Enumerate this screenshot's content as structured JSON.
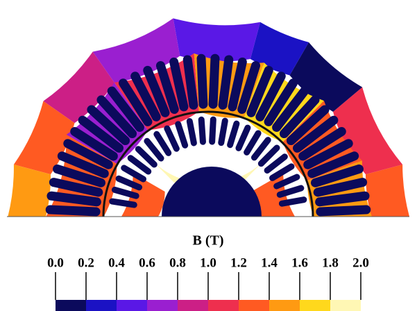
{
  "colorbar": {
    "title": "B (T)",
    "ticks": [
      "0.0",
      "0.2",
      "0.4",
      "0.6",
      "0.8",
      "1.0",
      "1.2",
      "1.4",
      "1.6",
      "1.8",
      "2.0"
    ],
    "colors": [
      "#0b0a5c",
      "#1b12c4",
      "#5a18e6",
      "#9a1fd0",
      "#cc1f86",
      "#ee2f4e",
      "#ff5a22",
      "#ff9a12",
      "#ffd81c",
      "#fff7b4"
    ]
  }
}
